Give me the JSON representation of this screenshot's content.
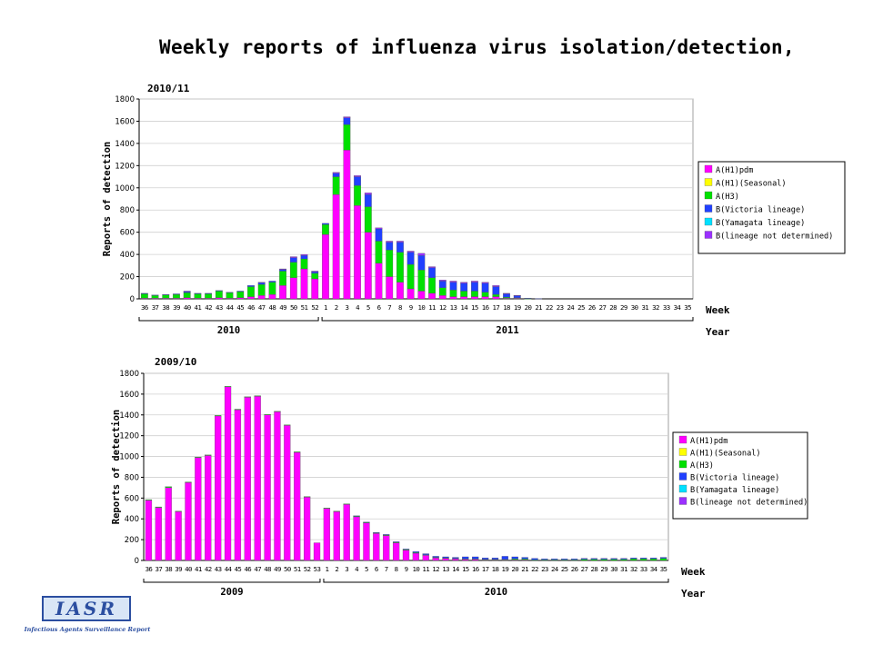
{
  "page_title": "Weekly reports of influenza virus isolation/detection,",
  "logo": {
    "text": "IASR",
    "subtitle": "Infectious Agents Surveillance Report"
  },
  "series_colors": {
    "A(H1)pdm": "#ff00ff",
    "A(H1)(Seasonal)": "#ffff00",
    "A(H3)": "#00e000",
    "B(Victoria lineage)": "#2040ff",
    "B(Yamagata lineage)": "#00e0ff",
    "B(lineage not determined)": "#9b30ff"
  },
  "chart_data": [
    {
      "type": "bar",
      "stacked": true,
      "title": "2010/11",
      "ylabel": "Reports of detection",
      "xlabel": "Week",
      "year_label": "Year",
      "years": [
        {
          "label": "2010",
          "weeks": "36-52"
        },
        {
          "label": "2011",
          "weeks": "1-35"
        }
      ],
      "ylim": [
        0,
        1800
      ],
      "yticks": [
        0,
        200,
        400,
        600,
        800,
        1000,
        1200,
        1400,
        1600,
        1800
      ],
      "legend_position": "right",
      "categories": [
        "36",
        "37",
        "38",
        "39",
        "40",
        "41",
        "42",
        "43",
        "44",
        "45",
        "46",
        "47",
        "48",
        "49",
        "50",
        "51",
        "52",
        "1",
        "2",
        "3",
        "4",
        "5",
        "6",
        "7",
        "8",
        "9",
        "10",
        "11",
        "12",
        "13",
        "14",
        "15",
        "16",
        "17",
        "18",
        "19",
        "20",
        "21",
        "22",
        "23",
        "24",
        "25",
        "26",
        "27",
        "28",
        "29",
        "30",
        "31",
        "32",
        "33",
        "34",
        "35"
      ],
      "series": [
        {
          "name": "A(H1)pdm",
          "values": [
            5,
            5,
            5,
            5,
            10,
            5,
            5,
            10,
            5,
            10,
            20,
            30,
            40,
            120,
            190,
            270,
            180,
            580,
            940,
            1340,
            840,
            600,
            320,
            200,
            150,
            90,
            70,
            50,
            30,
            20,
            20,
            20,
            20,
            20,
            5,
            5,
            0,
            0,
            0,
            0,
            0,
            0,
            0,
            0,
            0,
            0,
            0,
            0,
            0,
            0,
            0,
            0
          ]
        },
        {
          "name": "A(H1)(Seasonal)",
          "values": [
            0,
            0,
            0,
            0,
            0,
            0,
            0,
            0,
            0,
            0,
            0,
            0,
            0,
            0,
            0,
            0,
            0,
            0,
            0,
            0,
            0,
            0,
            0,
            0,
            0,
            0,
            0,
            0,
            0,
            0,
            0,
            0,
            0,
            0,
            0,
            0,
            0,
            0,
            0,
            0,
            0,
            0,
            0,
            0,
            0,
            0,
            0,
            0,
            0,
            0,
            0,
            0
          ]
        },
        {
          "name": "A(H3)",
          "values": [
            40,
            25,
            30,
            35,
            45,
            40,
            40,
            60,
            50,
            55,
            90,
            100,
            110,
            130,
            140,
            90,
            50,
            90,
            160,
            230,
            180,
            230,
            200,
            240,
            270,
            220,
            190,
            140,
            70,
            60,
            50,
            50,
            40,
            20,
            10,
            5,
            2,
            0,
            0,
            0,
            0,
            0,
            0,
            0,
            0,
            0,
            0,
            0,
            0,
            0,
            0,
            0
          ]
        },
        {
          "name": "B(Victoria lineage)",
          "values": [
            5,
            5,
            5,
            5,
            10,
            5,
            5,
            5,
            5,
            5,
            10,
            15,
            10,
            15,
            40,
            30,
            15,
            10,
            30,
            60,
            80,
            110,
            110,
            70,
            90,
            110,
            130,
            90,
            60,
            70,
            70,
            80,
            80,
            70,
            30,
            20,
            5,
            3,
            0,
            0,
            0,
            0,
            0,
            0,
            0,
            0,
            0,
            0,
            0,
            0,
            0,
            0
          ]
        },
        {
          "name": "B(Yamagata lineage)",
          "values": [
            0,
            0,
            0,
            0,
            0,
            0,
            0,
            0,
            0,
            0,
            0,
            0,
            0,
            0,
            0,
            0,
            0,
            0,
            0,
            0,
            0,
            0,
            0,
            0,
            0,
            0,
            0,
            0,
            0,
            0,
            0,
            0,
            0,
            0,
            0,
            0,
            0,
            0,
            0,
            0,
            0,
            0,
            0,
            0,
            0,
            0,
            0,
            0,
            0,
            0,
            0,
            0
          ]
        },
        {
          "name": "B(lineage not determined)",
          "values": [
            0,
            0,
            0,
            0,
            5,
            0,
            0,
            0,
            0,
            0,
            0,
            5,
            0,
            5,
            10,
            10,
            5,
            0,
            10,
            10,
            10,
            15,
            10,
            10,
            10,
            10,
            20,
            10,
            10,
            10,
            10,
            10,
            10,
            10,
            5,
            2,
            0,
            0,
            0,
            0,
            0,
            0,
            0,
            0,
            0,
            0,
            0,
            0,
            0,
            0,
            0,
            0
          ]
        }
      ]
    },
    {
      "type": "bar",
      "stacked": true,
      "title": "2009/10",
      "ylabel": "Reports of detection",
      "xlabel": "Week",
      "year_label": "Year",
      "years": [
        {
          "label": "2009",
          "weeks": "36-53"
        },
        {
          "label": "2010",
          "weeks": "1-35"
        }
      ],
      "ylim": [
        0,
        1800
      ],
      "yticks": [
        0,
        200,
        400,
        600,
        800,
        1000,
        1200,
        1400,
        1600,
        1800
      ],
      "legend_position": "right",
      "categories": [
        "36",
        "37",
        "38",
        "39",
        "40",
        "41",
        "42",
        "43",
        "44",
        "45",
        "46",
        "47",
        "48",
        "49",
        "50",
        "51",
        "52",
        "53",
        "1",
        "2",
        "3",
        "4",
        "5",
        "6",
        "7",
        "8",
        "9",
        "10",
        "11",
        "12",
        "13",
        "14",
        "15",
        "16",
        "17",
        "18",
        "19",
        "20",
        "21",
        "22",
        "23",
        "24",
        "25",
        "26",
        "27",
        "28",
        "29",
        "30",
        "31",
        "32",
        "33",
        "34",
        "35"
      ],
      "series": [
        {
          "name": "A(H1)pdm",
          "values": [
            580,
            510,
            700,
            470,
            750,
            990,
            1010,
            1390,
            1670,
            1450,
            1570,
            1580,
            1400,
            1430,
            1300,
            1040,
            610,
            170,
            500,
            470,
            540,
            420,
            360,
            260,
            240,
            170,
            100,
            70,
            50,
            25,
            20,
            15,
            10,
            10,
            5,
            5,
            5,
            5,
            5,
            0,
            0,
            0,
            0,
            0,
            0,
            0,
            0,
            0,
            0,
            0,
            0,
            0,
            0
          ]
        },
        {
          "name": "A(H1)(Seasonal)",
          "values": [
            0,
            0,
            0,
            0,
            0,
            0,
            0,
            0,
            0,
            0,
            0,
            0,
            0,
            0,
            0,
            0,
            0,
            0,
            0,
            0,
            0,
            0,
            0,
            0,
            0,
            0,
            0,
            0,
            0,
            0,
            0,
            0,
            0,
            0,
            0,
            0,
            0,
            0,
            0,
            0,
            0,
            0,
            0,
            0,
            0,
            0,
            0,
            0,
            0,
            0,
            0,
            0,
            0
          ]
        },
        {
          "name": "A(H3)",
          "values": [
            5,
            5,
            10,
            5,
            5,
            5,
            5,
            5,
            5,
            5,
            5,
            5,
            5,
            5,
            5,
            5,
            5,
            0,
            5,
            5,
            5,
            5,
            5,
            5,
            5,
            5,
            5,
            5,
            5,
            5,
            5,
            5,
            5,
            5,
            5,
            5,
            5,
            10,
            10,
            5,
            5,
            5,
            5,
            5,
            10,
            10,
            10,
            10,
            10,
            15,
            15,
            15,
            20
          ]
        },
        {
          "name": "B(Victoria lineage)",
          "values": [
            0,
            0,
            0,
            0,
            0,
            0,
            0,
            0,
            0,
            0,
            0,
            0,
            0,
            0,
            0,
            0,
            0,
            0,
            0,
            0,
            0,
            5,
            5,
            5,
            5,
            5,
            5,
            10,
            10,
            10,
            10,
            10,
            20,
            20,
            15,
            15,
            30,
            20,
            15,
            15,
            10,
            10,
            10,
            10,
            10,
            10,
            10,
            10,
            10,
            10,
            10,
            10,
            10
          ]
        },
        {
          "name": "B(Yamagata lineage)",
          "values": [
            0,
            0,
            0,
            0,
            0,
            0,
            0,
            0,
            0,
            0,
            0,
            0,
            0,
            0,
            0,
            0,
            0,
            0,
            0,
            0,
            0,
            0,
            0,
            0,
            0,
            0,
            0,
            0,
            0,
            0,
            0,
            0,
            0,
            0,
            0,
            0,
            0,
            0,
            0,
            0,
            0,
            0,
            0,
            0,
            0,
            0,
            0,
            0,
            0,
            0,
            0,
            0,
            0
          ]
        },
        {
          "name": "B(lineage not determined)",
          "values": [
            0,
            0,
            0,
            0,
            0,
            0,
            0,
            0,
            0,
            0,
            0,
            0,
            0,
            0,
            0,
            0,
            0,
            0,
            0,
            0,
            0,
            0,
            0,
            0,
            0,
            0,
            0,
            0,
            0,
            0,
            0,
            0,
            0,
            0,
            0,
            0,
            0,
            0,
            0,
            0,
            0,
            0,
            0,
            0,
            0,
            0,
            0,
            0,
            0,
            0,
            0,
            0,
            0
          ]
        }
      ]
    }
  ]
}
